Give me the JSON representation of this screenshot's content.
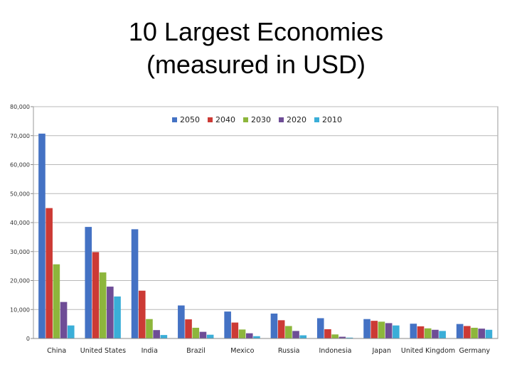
{
  "slide": {
    "title_line1": "10 Largest Economies",
    "title_line2": "(measured in USD)"
  },
  "chart_data": {
    "type": "bar",
    "categories": [
      "China",
      "United States",
      "India",
      "Brazil",
      "Mexico",
      "Russia",
      "Indonesia",
      "Japan",
      "United Kingdom",
      "Germany"
    ],
    "series": [
      {
        "name": "2050",
        "color": "#4472c4",
        "values": [
          70.7,
          38.5,
          37.7,
          11.4,
          9.3,
          8.6,
          7.0,
          6.7,
          5.1,
          5.0
        ]
      },
      {
        "name": "2040",
        "color": "#cc3a35",
        "values": [
          45.0,
          29.8,
          16.5,
          6.6,
          5.5,
          6.3,
          3.2,
          6.1,
          4.2,
          4.3
        ]
      },
      {
        "name": "2030",
        "color": "#8db63c",
        "values": [
          25.6,
          22.8,
          6.7,
          3.7,
          3.1,
          4.3,
          1.4,
          5.8,
          3.5,
          3.7
        ]
      },
      {
        "name": "2020",
        "color": "#6e4d96",
        "values": [
          12.6,
          17.9,
          2.9,
          2.3,
          1.8,
          2.6,
          0.6,
          5.3,
          3.0,
          3.4
        ]
      },
      {
        "name": "2010",
        "color": "#3aaed8",
        "values": [
          4.5,
          14.5,
          1.2,
          1.3,
          0.8,
          1.1,
          0.3,
          4.5,
          2.6,
          3.0
        ]
      }
    ],
    "yticks": [
      0,
      10,
      20,
      30,
      40,
      50,
      60,
      70,
      80
    ],
    "ytick_labels": [
      "0",
      "10,000",
      "20,000",
      "30,000",
      "40,000",
      "50,000",
      "60,000",
      "70,000",
      "80,000"
    ],
    "ylim": [
      0,
      80
    ],
    "grid": true,
    "legend": "top-center",
    "title": "",
    "xlabel": "",
    "ylabel": ""
  }
}
